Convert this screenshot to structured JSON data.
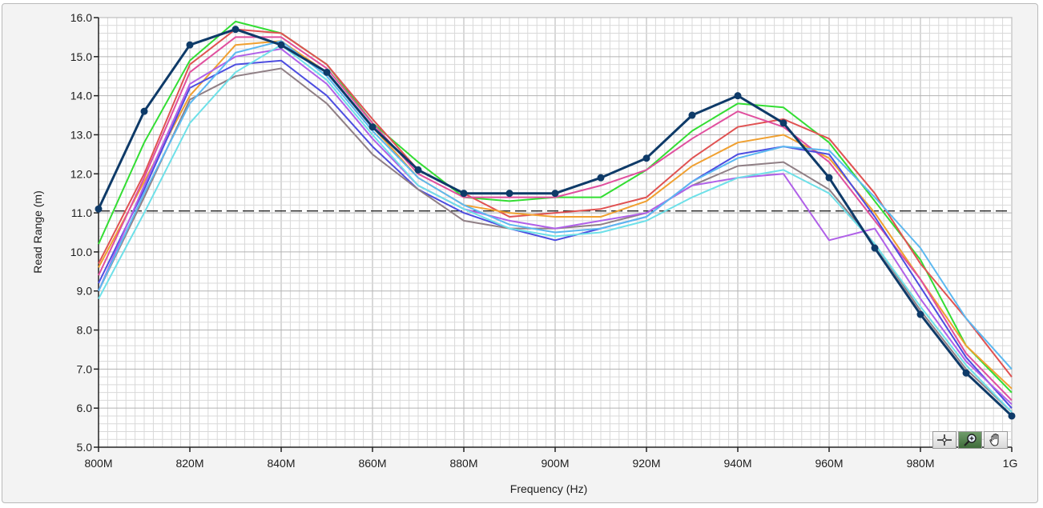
{
  "chart_data": {
    "type": "line",
    "title": "",
    "xlabel": "Frequency (Hz)",
    "ylabel": "Read Range (m)",
    "x": [
      800,
      810,
      820,
      830,
      840,
      850,
      860,
      870,
      880,
      890,
      900,
      910,
      920,
      930,
      940,
      950,
      960,
      970,
      980,
      990,
      1000
    ],
    "x_ticks": [
      800,
      820,
      840,
      860,
      880,
      900,
      920,
      940,
      960,
      980,
      1000
    ],
    "x_tick_labels": [
      "800M",
      "820M",
      "840M",
      "860M",
      "880M",
      "900M",
      "920M",
      "940M",
      "960M",
      "980M",
      "1G"
    ],
    "xlim": [
      800,
      1000
    ],
    "y_ticks": [
      5,
      6,
      7,
      8,
      9,
      10,
      11,
      12,
      13,
      14,
      15,
      16
    ],
    "y_tick_labels": [
      "5.0",
      "6.0",
      "7.0",
      "8.0",
      "9.0",
      "10.0",
      "11.0",
      "12.0",
      "13.0",
      "14.0",
      "15.0",
      "16.0"
    ],
    "ylim": [
      5,
      16
    ],
    "grid": true,
    "reference_line": {
      "y": 11.05,
      "style": "dashed",
      "color": "#222222"
    },
    "series": [
      {
        "color": "#33dd33",
        "markers": false,
        "values": [
          10.2,
          12.8,
          14.9,
          15.9,
          15.6,
          14.8,
          13.3,
          12.3,
          11.4,
          11.3,
          11.4,
          11.4,
          12.1,
          13.1,
          13.8,
          13.7,
          12.8,
          11.3,
          9.8,
          7.6,
          6.4
        ]
      },
      {
        "color": "#e05252",
        "markers": false,
        "values": [
          9.7,
          12.0,
          14.8,
          15.7,
          15.6,
          14.8,
          13.4,
          12.1,
          11.5,
          10.9,
          11.0,
          11.1,
          11.4,
          12.4,
          13.2,
          13.4,
          12.9,
          11.5,
          9.7,
          8.3,
          6.8
        ]
      },
      {
        "color": "#f0a030",
        "markers": false,
        "values": [
          9.6,
          11.8,
          14.0,
          15.3,
          15.4,
          14.6,
          13.2,
          11.9,
          11.2,
          11.0,
          10.9,
          10.9,
          11.3,
          12.2,
          12.8,
          13.0,
          12.4,
          11.0,
          9.3,
          7.6,
          6.5
        ]
      },
      {
        "color": "#e04f9e",
        "markers": false,
        "values": [
          9.4,
          11.9,
          14.6,
          15.5,
          15.5,
          14.7,
          13.3,
          12.0,
          11.4,
          11.4,
          11.4,
          11.7,
          12.1,
          12.9,
          13.6,
          13.2,
          12.3,
          10.8,
          9.3,
          7.4,
          6.2
        ]
      },
      {
        "color": "#4d4de0",
        "markers": false,
        "values": [
          9.2,
          11.6,
          14.2,
          14.8,
          14.9,
          14.0,
          12.7,
          11.6,
          11.0,
          10.6,
          10.3,
          10.6,
          10.9,
          11.8,
          12.5,
          12.7,
          12.5,
          10.9,
          9.1,
          7.3,
          6.0
        ]
      },
      {
        "color": "#8f7f85",
        "markers": false,
        "values": [
          9.0,
          11.4,
          13.9,
          14.5,
          14.7,
          13.8,
          12.5,
          11.6,
          10.8,
          10.6,
          10.6,
          10.7,
          11.0,
          11.7,
          12.2,
          12.3,
          11.6,
          10.2,
          8.5,
          7.0,
          5.9
        ]
      },
      {
        "color": "#b060e8",
        "markers": false,
        "values": [
          9.0,
          11.7,
          14.3,
          15.0,
          15.2,
          14.3,
          12.9,
          11.7,
          11.1,
          10.8,
          10.6,
          10.8,
          11.0,
          11.7,
          11.9,
          12.0,
          10.3,
          10.6,
          8.8,
          7.2,
          6.1
        ]
      },
      {
        "color": "#6ee0e8",
        "markers": false,
        "values": [
          8.8,
          11.0,
          13.3,
          14.6,
          15.3,
          14.4,
          13.0,
          11.7,
          11.1,
          10.6,
          10.4,
          10.5,
          10.8,
          11.4,
          11.9,
          12.1,
          11.5,
          10.2,
          8.6,
          7.1,
          5.9
        ]
      },
      {
        "color": "#5cb8f0",
        "markers": false,
        "values": [
          9.0,
          11.5,
          13.8,
          15.1,
          15.4,
          14.5,
          13.1,
          11.9,
          11.2,
          10.7,
          10.5,
          10.6,
          10.9,
          11.8,
          12.4,
          12.7,
          12.6,
          11.4,
          10.1,
          8.3,
          7.0
        ]
      },
      {
        "color": "#0e3a68",
        "markers": true,
        "values": [
          11.1,
          13.6,
          15.3,
          15.7,
          15.3,
          14.6,
          13.2,
          12.1,
          11.5,
          11.5,
          11.5,
          11.9,
          12.4,
          13.5,
          14.0,
          13.3,
          11.9,
          10.1,
          8.4,
          6.9,
          5.8
        ]
      }
    ]
  },
  "toolbar": {
    "tools": [
      {
        "name": "cursor-move-tool",
        "icon": "crosshair-icon"
      },
      {
        "name": "zoom-tool",
        "icon": "magnifier-plus-icon"
      },
      {
        "name": "pan-tool",
        "icon": "hand-icon"
      }
    ]
  }
}
